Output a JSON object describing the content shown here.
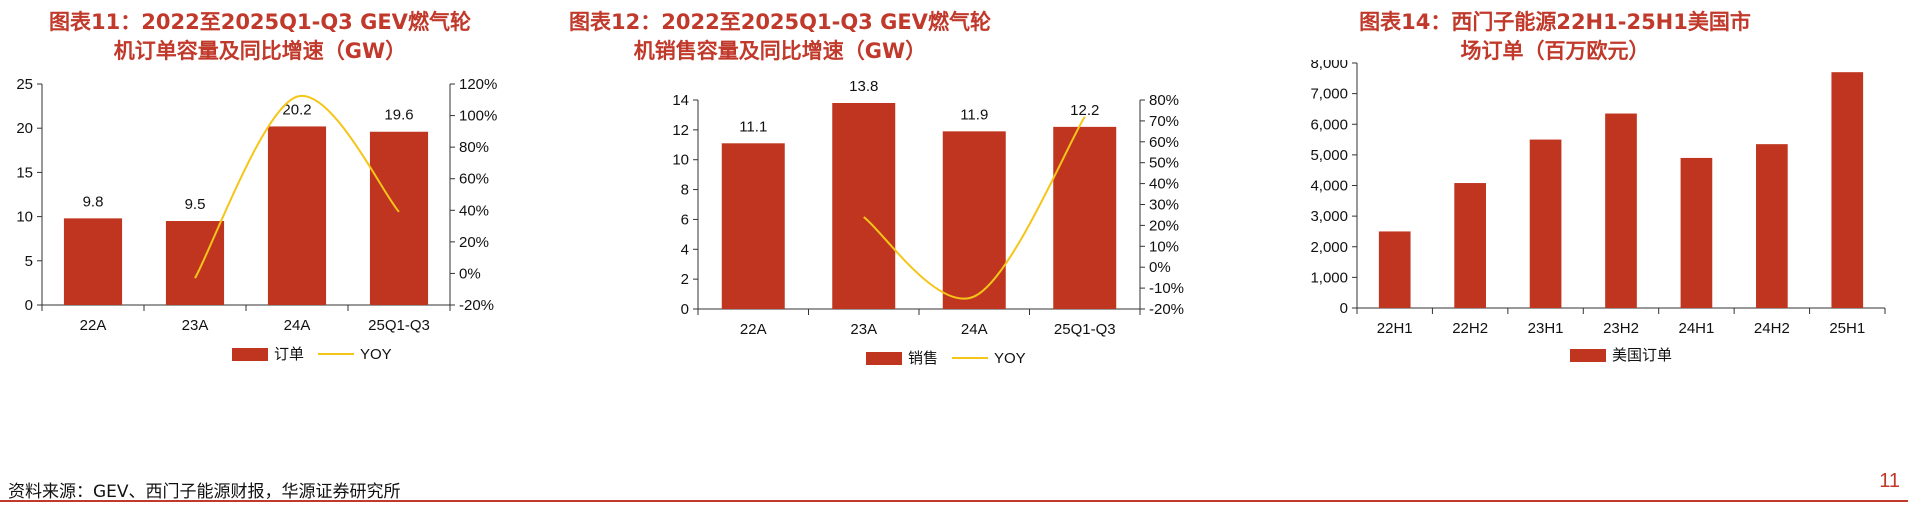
{
  "colors": {
    "bar": "#c0351f",
    "line": "#f5c518",
    "title": "#c0392b",
    "axis": "#333333"
  },
  "footer": {
    "source": "资料来源：GEV、西门子能源财报，华源证券研究所",
    "page_number": "11"
  },
  "chart_data": [
    {
      "type": "bar",
      "title": "图表11：2022至2025Q1-Q3 GEV燃气轮机订单容量及同比增速（GW）",
      "title_lines": [
        "图表11：2022至2025Q1-Q3 GEV燃气轮",
        "机订单容量及同比增速（GW）"
      ],
      "categories": [
        "22A",
        "23A",
        "24A",
        "25Q1-Q3"
      ],
      "series": [
        {
          "name": "订单",
          "axis": "left",
          "values": [
            9.8,
            9.5,
            20.2,
            19.6
          ],
          "labels": [
            "9.8",
            "9.5",
            "20.2",
            "19.6"
          ]
        },
        {
          "name": "YOY",
          "axis": "right",
          "type": "line",
          "smooth": true,
          "values": [
            null,
            -3,
            112,
            39
          ]
        }
      ],
      "ylim": [
        0,
        25
      ],
      "yticks": [
        "0",
        "5",
        "10",
        "15",
        "20",
        "25"
      ],
      "y2lim": [
        -20,
        120
      ],
      "y2ticks": [
        "-20%",
        "0%",
        "20%",
        "40%",
        "60%",
        "80%",
        "100%",
        "120%"
      ],
      "legend": "bottom",
      "grid": false
    },
    {
      "type": "bar",
      "title": "图表12：2022至2025Q1-Q3 GEV燃气轮机销售容量及同比增速（GW）",
      "title_lines": [
        "图表12：2022至2025Q1-Q3 GEV燃气轮",
        "机销售容量及同比增速（GW）"
      ],
      "categories": [
        "22A",
        "23A",
        "24A",
        "25Q1-Q3"
      ],
      "series": [
        {
          "name": "销售",
          "axis": "left",
          "values": [
            11.1,
            13.8,
            11.9,
            12.2
          ],
          "labels": [
            "11.1",
            "13.8",
            "11.9",
            "12.2"
          ]
        },
        {
          "name": "YOY",
          "axis": "right",
          "type": "line",
          "smooth": true,
          "values": [
            null,
            24,
            -14,
            72
          ]
        }
      ],
      "ylim": [
        0,
        14
      ],
      "yticks": [
        "0",
        "2",
        "4",
        "6",
        "8",
        "10",
        "12",
        "14"
      ],
      "y2lim": [
        -20,
        80
      ],
      "y2ticks": [
        "-20%",
        "-10%",
        "0%",
        "10%",
        "20%",
        "30%",
        "40%",
        "50%",
        "60%",
        "70%",
        "80%"
      ],
      "legend": "bottom",
      "grid": false
    },
    {
      "type": "bar",
      "title": "图表14：西门子能源22H1-25H1美国市场订单（百万欧元）",
      "title_lines": [
        "图表14：西门子能源22H1-25H1美国市",
        "场订单（百万欧元）"
      ],
      "categories": [
        "22H1",
        "22H2",
        "23H1",
        "23H2",
        "24H1",
        "24H2",
        "25H1"
      ],
      "series": [
        {
          "name": "美国订单",
          "axis": "left",
          "values": [
            2500,
            4080,
            5500,
            6350,
            4900,
            5350,
            7700
          ]
        }
      ],
      "ylim": [
        0,
        8000
      ],
      "yticks": [
        "0",
        "1,000",
        "2,000",
        "3,000",
        "4,000",
        "5,000",
        "6,000",
        "7,000",
        "8,000"
      ],
      "legend": "bottom",
      "grid": false
    }
  ]
}
